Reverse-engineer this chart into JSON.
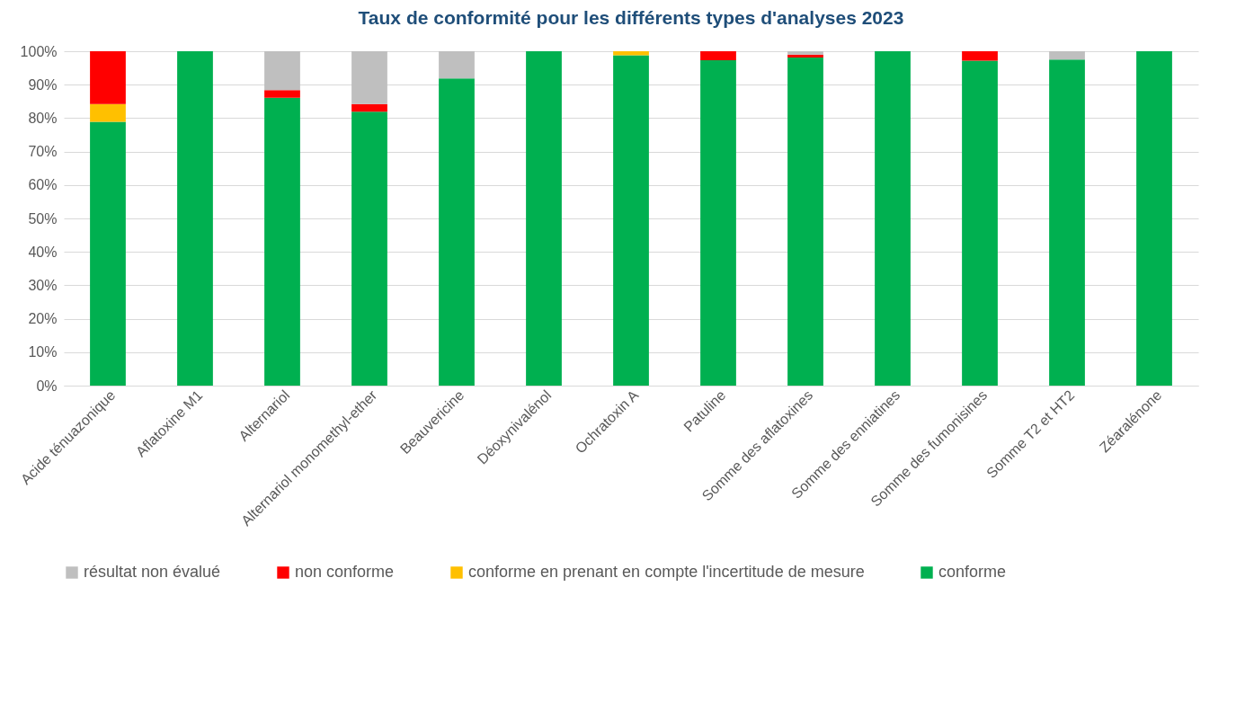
{
  "chart_data": {
    "type": "bar",
    "title": "Taux de conformité pour les différents types d'analyses 2023",
    "categories": [
      "Acide ténuazonique",
      "Aflatoxine M1",
      "Alternariol",
      "Alternariol monomethyl-ether",
      "Beauvericine",
      "Déoxynivalénol",
      "Ochratoxin A",
      "Patuline",
      "Somme des aflatoxines",
      "Somme des enniatines",
      "Somme des fumonisines",
      "Somme T2 et HT2",
      "Zéaralénone"
    ],
    "series": [
      {
        "name": "conforme",
        "color": "#00b050",
        "values": [
          78.9,
          100,
          86.1,
          81.9,
          91.9,
          100,
          98.8,
          97.3,
          98.1,
          100,
          97.2,
          97.5,
          100
        ]
      },
      {
        "name": "conforme en prenant en compte l'incertitude de mesure",
        "color": "#ffc000",
        "values": [
          5.3,
          0,
          0,
          0,
          0,
          0,
          1.2,
          0,
          0,
          0,
          0,
          0,
          0
        ]
      },
      {
        "name": "non conforme",
        "color": "#ff0000",
        "values": [
          15.8,
          0,
          2.3,
          2.3,
          0,
          0,
          0,
          2.7,
          0.9,
          0,
          2.8,
          0,
          0
        ]
      },
      {
        "name": "résultat non évalué",
        "color": "#bfbfbf",
        "values": [
          0,
          0,
          11.6,
          15.8,
          8.1,
          0,
          0,
          0,
          1.0,
          0,
          0,
          2.5,
          0
        ]
      }
    ],
    "stacked": true,
    "ylim": [
      0,
      100
    ],
    "yticks": [
      {
        "value": 0,
        "label": "0%"
      },
      {
        "value": 10,
        "label": "10%"
      },
      {
        "value": 20,
        "label": "20%"
      },
      {
        "value": 30,
        "label": "30%"
      },
      {
        "value": 40,
        "label": "40%"
      },
      {
        "value": 50,
        "label": "50%"
      },
      {
        "value": 60,
        "label": "60%"
      },
      {
        "value": 70,
        "label": "70%"
      },
      {
        "value": 80,
        "label": "80%"
      },
      {
        "value": 90,
        "label": "90%"
      },
      {
        "value": 100,
        "label": "100%"
      }
    ],
    "grid": "y",
    "legend": "bottom"
  }
}
